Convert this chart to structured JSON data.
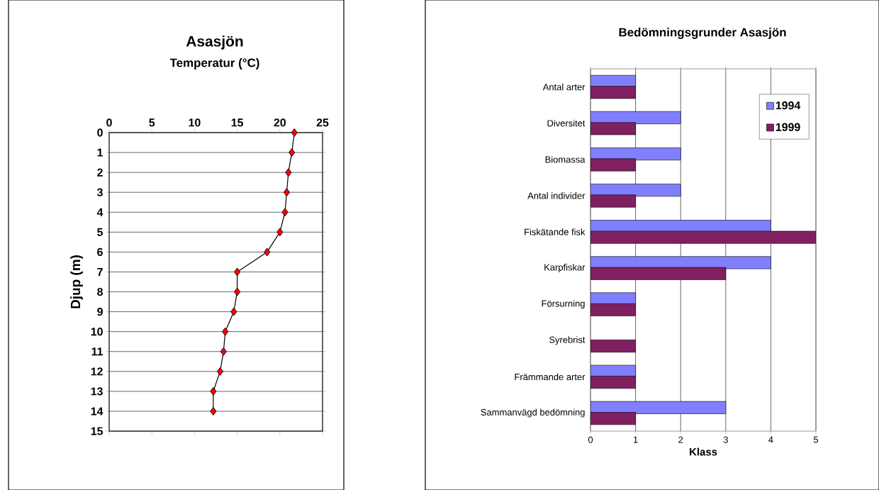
{
  "chart_data": [
    {
      "type": "line",
      "title": "Asasjön",
      "xlabel": "Temperatur (°C)",
      "ylabel": "Djup (m)",
      "xlim": [
        0,
        25
      ],
      "xticks": [
        0,
        5,
        10,
        15,
        20,
        25
      ],
      "ylim": [
        15,
        0
      ],
      "yticks": [
        0,
        1,
        2,
        3,
        4,
        5,
        6,
        7,
        8,
        9,
        10,
        11,
        12,
        13,
        14,
        15
      ],
      "grid": "y",
      "marker": "diamond",
      "legend": false,
      "series": [
        {
          "color": "#ff0000",
          "x": [
            21.7,
            21.4,
            21.0,
            20.8,
            20.6,
            20.0,
            18.5,
            15.0,
            15.0,
            14.6,
            13.6,
            13.4,
            13.0,
            12.2,
            12.2
          ],
          "values": [
            0,
            1,
            2,
            3,
            4,
            5,
            6,
            7,
            8,
            9,
            10,
            11,
            12,
            13,
            14
          ]
        }
      ]
    },
    {
      "type": "bar",
      "orientation": "horizontal",
      "title": "Bedömningsgrunder Asasjön",
      "xlabel": "Klass",
      "categories": [
        "Antal arter",
        "Diversitet",
        "Biomassa",
        "Antal individer",
        "Fiskätande fisk",
        "Karpfiskar",
        "Försurning",
        "Syrebrist",
        "Främmande arter",
        "Sammanvägd bedömning"
      ],
      "xlim": [
        0,
        5
      ],
      "xticks": [
        0,
        1,
        2,
        3,
        4,
        5
      ],
      "grid": "x",
      "legend": "top right",
      "series": [
        {
          "name": "1994",
          "color": "#8080ff",
          "values": [
            1,
            2,
            2,
            2,
            4,
            4,
            1,
            null,
            1,
            3
          ]
        },
        {
          "name": "1999",
          "color": "#802060",
          "values": [
            1,
            1,
            1,
            1,
            5,
            3,
            1,
            1,
            1,
            1
          ]
        }
      ]
    }
  ]
}
